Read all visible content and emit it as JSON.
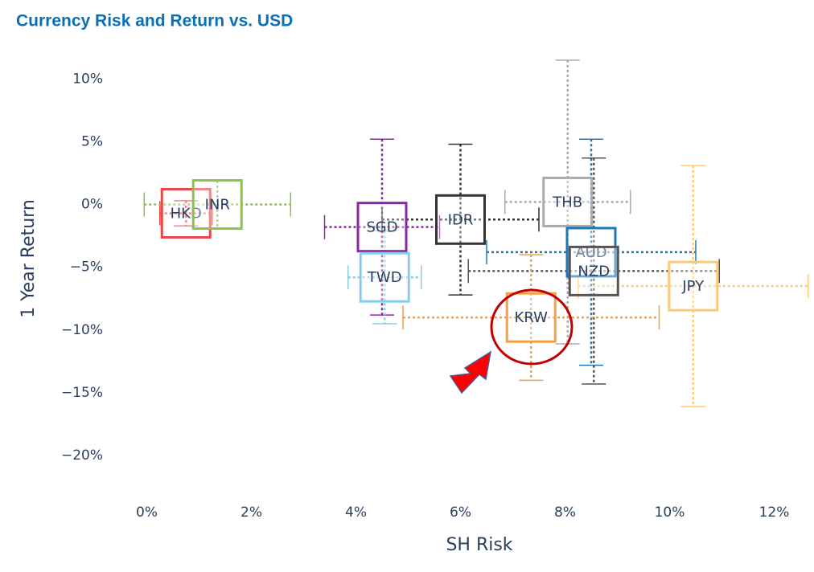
{
  "chart_data": {
    "type": "scatter",
    "title": "Currency Risk and Return vs. USD",
    "x_label": "SH Risk",
    "y_label": "1 Year Return",
    "xlim": [
      -0.5,
      12.5
    ],
    "ylim": [
      -23,
      12
    ],
    "xticks": [
      {
        "value": 0,
        "label": "0%"
      },
      {
        "value": 2,
        "label": "2%"
      },
      {
        "value": 4,
        "label": "4%"
      },
      {
        "value": 6,
        "label": "6%"
      },
      {
        "value": 8,
        "label": "8%"
      },
      {
        "value": 10,
        "label": "10%"
      },
      {
        "value": 12,
        "label": "12%"
      }
    ],
    "yticks": [
      {
        "value": 10,
        "label": "10%"
      },
      {
        "value": 5,
        "label": "5%"
      },
      {
        "value": 0,
        "label": "0%"
      },
      {
        "value": -5,
        "label": "−5%"
      },
      {
        "value": -10,
        "label": "−10%"
      },
      {
        "value": -15,
        "label": "−15%"
      },
      {
        "value": -20,
        "label": "−20%"
      }
    ],
    "series": [
      {
        "name": "HKD",
        "color": "#e8474a",
        "x": 0.75,
        "y": -0.7,
        "error_x": 0.5,
        "error_y": 1.0
      },
      {
        "name": "INR",
        "color": "#8bc34a",
        "x": 1.35,
        "y": 0,
        "error_x": 1.4,
        "error_y": 1.9
      },
      {
        "name": "SGD",
        "color": "#8e24aa",
        "x": 4.5,
        "y": -1.8,
        "error_x": 1.1,
        "error_y": 7.0
      },
      {
        "name": "TWD",
        "color": "#87ceeb",
        "x": 4.55,
        "y": -5.8,
        "error_x": 0.7,
        "error_y": 3.7
      },
      {
        "name": "IDR",
        "color": "#333333",
        "x": 6.0,
        "y": -1.2,
        "error_x": 1.5,
        "error_y": 6.0
      },
      {
        "name": "THB",
        "color": "#aaaaaa",
        "x": 8.05,
        "y": 0.2,
        "error_x": 1.2,
        "error_y": 11.3
      },
      {
        "name": "AUD",
        "color": "#1f77b4",
        "x": 8.5,
        "y": -3.8,
        "error_x": 2.0,
        "error_y": 9.0
      },
      {
        "name": "NZD",
        "color": "#555555",
        "x": 8.55,
        "y": -5.3,
        "error_x": 2.4,
        "error_y": 9.0
      },
      {
        "name": "JPY",
        "color": "#fdc878",
        "x": 10.45,
        "y": -6.5,
        "error_x": 2.2,
        "error_y": 9.6
      },
      {
        "name": "KRW",
        "color": "#f5a142",
        "x": 7.35,
        "y": -9.0,
        "error_x": 2.45,
        "error_y": 5.0
      }
    ]
  }
}
